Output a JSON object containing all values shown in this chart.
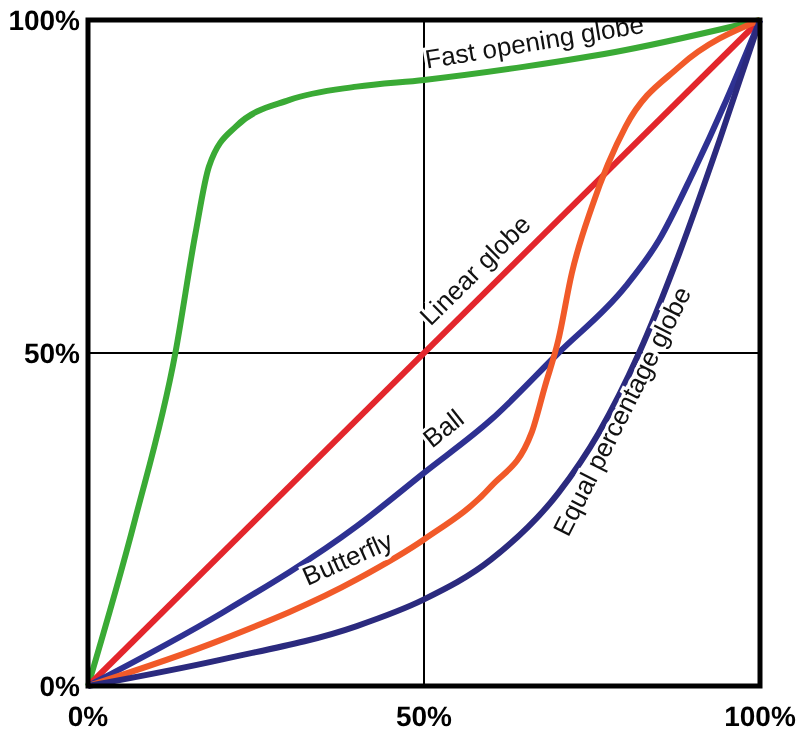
{
  "chart_data": {
    "type": "line",
    "xlim": [
      0,
      100
    ],
    "ylim": [
      0,
      100
    ],
    "xticks": [
      {
        "value": 0,
        "label": "0%"
      },
      {
        "value": 50,
        "label": "50%"
      },
      {
        "value": 100,
        "label": "100%"
      }
    ],
    "yticks": [
      {
        "value": 0,
        "label": "0%"
      },
      {
        "value": 50,
        "label": "50%"
      },
      {
        "value": 100,
        "label": "100%"
      }
    ],
    "grid": true,
    "marker": "none",
    "line_style": "solid",
    "series": [
      {
        "name": "Fast opening globe",
        "color": "#3aaa35",
        "x": [
          0,
          7,
          13,
          16,
          18,
          22,
          30,
          40,
          50,
          65,
          80,
          100
        ],
        "values": [
          0,
          25,
          50,
          68,
          78,
          84,
          88,
          90,
          91,
          93,
          95.5,
          100
        ]
      },
      {
        "name": "Linear globe",
        "color": "#e3262c",
        "x": [
          0,
          100
        ],
        "values": [
          0,
          100
        ]
      },
      {
        "name": "Ball",
        "color": "#2e3192",
        "x": [
          0,
          20,
          40,
          50,
          60,
          70,
          80,
          85,
          90,
          95,
          100
        ],
        "values": [
          0,
          11,
          24,
          32,
          40,
          50,
          60,
          67,
          77,
          88,
          100
        ]
      },
      {
        "name": "Butterfly",
        "color": "#f15a29",
        "x": [
          0,
          20,
          40,
          50,
          60,
          66,
          68,
          70,
          72,
          75,
          80,
          88,
          100
        ],
        "values": [
          0,
          7,
          16,
          22,
          30,
          38,
          45,
          52,
          62,
          72,
          84,
          93,
          100
        ]
      },
      {
        "name": "Equal percentage globe",
        "color": "#2b2a7e",
        "x": [
          0,
          20,
          40,
          50,
          60,
          70,
          76,
          82,
          88,
          94,
          100
        ],
        "values": [
          0,
          4,
          9,
          13,
          19,
          29,
          38,
          50,
          65,
          82,
          100
        ]
      }
    ]
  }
}
